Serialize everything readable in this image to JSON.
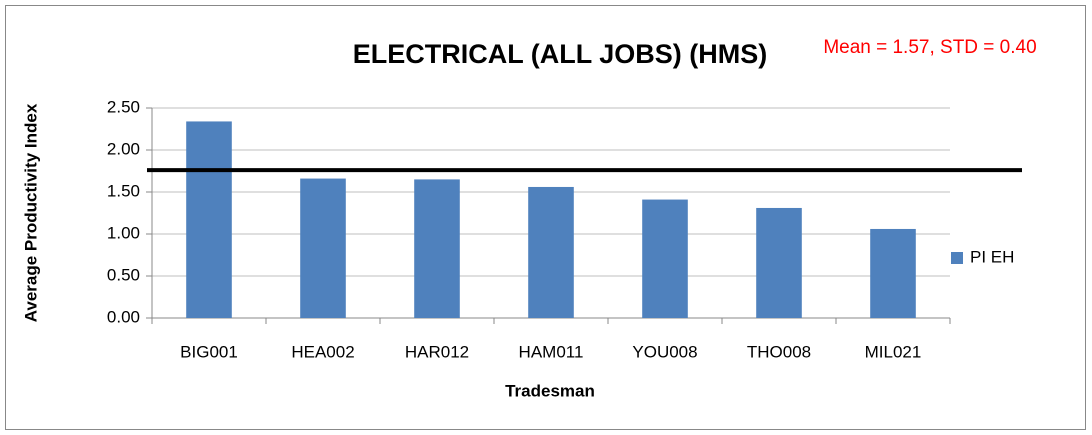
{
  "chart_data": {
    "type": "bar",
    "title": "ELECTRICAL (ALL JOBS) (HMS)",
    "annotation": "Mean = 1.57, STD = 0.40",
    "annotation_color": "#ff0000",
    "x_label": "Tradesman",
    "y_label": "Average Productivity Index",
    "categories": [
      "BIG001",
      "HEA002",
      "HAR012",
      "HAM011",
      "YOU008",
      "THO008",
      "MIL021"
    ],
    "series": [
      {
        "name": "PI EH",
        "color": "#4f81bd",
        "values": [
          2.34,
          1.66,
          1.65,
          1.56,
          1.41,
          1.31,
          1.06
        ]
      }
    ],
    "ylim": [
      0,
      2.5
    ],
    "yticks": [
      {
        "value": 0,
        "label": "0.00"
      },
      {
        "value": 0.5,
        "label": "0.50"
      },
      {
        "value": 1,
        "label": "1.00"
      },
      {
        "value": 1.5,
        "label": "1.50"
      },
      {
        "value": 2,
        "label": "2.00"
      },
      {
        "value": 2.5,
        "label": "2.50"
      }
    ],
    "grid": true,
    "legend": "right",
    "reference_line": {
      "value": 1.76,
      "color": "#000000"
    }
  }
}
